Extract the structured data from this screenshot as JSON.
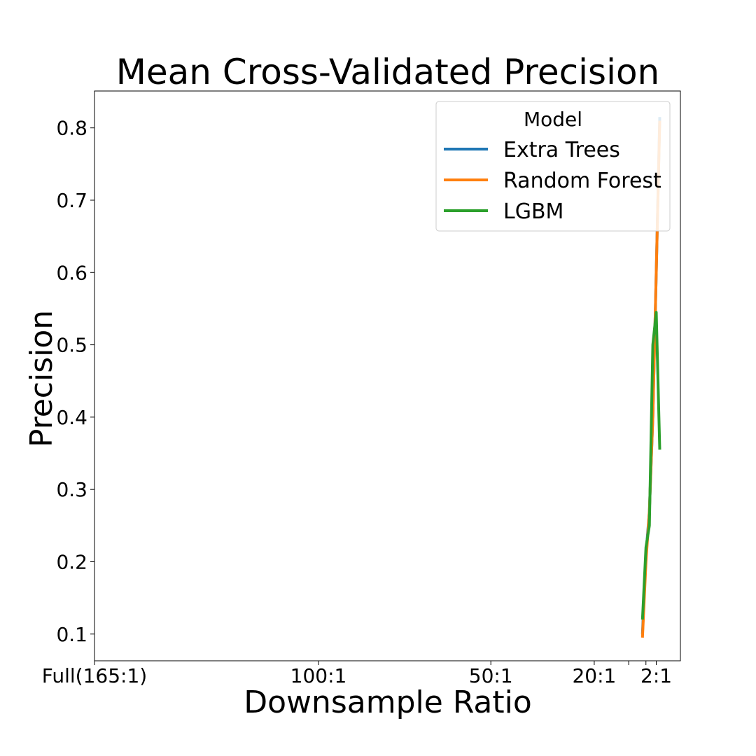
{
  "chart_data": {
    "type": "line",
    "title": "Mean Cross-Validated Precision",
    "xlabel": "Downsample Ratio",
    "ylabel": "Precision",
    "xlim": [
      165,
      -5
    ],
    "ylim": [
      0.063,
      0.851
    ],
    "x_ticks": [
      {
        "value": 165,
        "label": "Full(165:1)"
      },
      {
        "value": 100,
        "label": "100:1"
      },
      {
        "value": 50,
        "label": "50:1"
      },
      {
        "value": 20,
        "label": "20:1"
      },
      {
        "value": 10,
        "label": ""
      },
      {
        "value": 5,
        "label": ""
      },
      {
        "value": 2,
        "label": "2:1"
      }
    ],
    "y_ticks": [
      0.1,
      0.2,
      0.3,
      0.4,
      0.5,
      0.6,
      0.7,
      0.8
    ],
    "grid": false,
    "legend": {
      "title": "Model",
      "position": "top-right"
    },
    "series": [
      {
        "name": "Extra Trees",
        "color": "#1f77b4",
        "points": [
          [
            6,
            0.1
          ],
          [
            5,
            0.21
          ],
          [
            4,
            0.27
          ],
          [
            3,
            0.4
          ],
          [
            2,
            0.6
          ],
          [
            1,
            0.815
          ]
        ]
      },
      {
        "name": "Random Forest",
        "color": "#ff7f0e",
        "points": [
          [
            6,
            0.095
          ],
          [
            5,
            0.2
          ],
          [
            4,
            0.27
          ],
          [
            3,
            0.4
          ],
          [
            2,
            0.6
          ],
          [
            1,
            0.81
          ]
        ]
      },
      {
        "name": "LGBM",
        "color": "#2ca02c",
        "points": [
          [
            6,
            0.12
          ],
          [
            5,
            0.22
          ],
          [
            4,
            0.25
          ],
          [
            3,
            0.5
          ],
          [
            2,
            0.545
          ],
          [
            1,
            0.355
          ]
        ]
      }
    ]
  }
}
